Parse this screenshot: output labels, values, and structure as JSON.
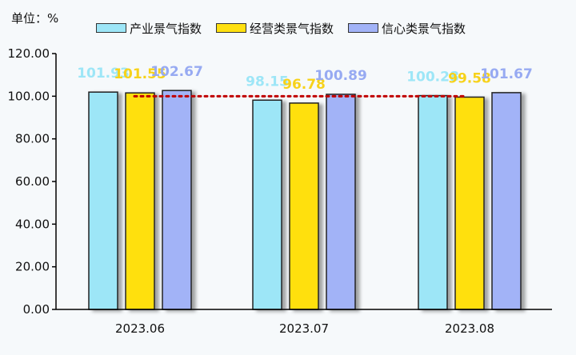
{
  "unit_label": "单位：%",
  "chart_data": {
    "type": "bar",
    "categories": [
      "2023.06",
      "2023.07",
      "2023.08"
    ],
    "series": [
      {
        "name": "产业景气指数",
        "values": [
          101.93,
          98.15,
          100.28
        ],
        "color": "#9de6f7",
        "label_color": "#9de6f7"
      },
      {
        "name": "经营类景气指数",
        "values": [
          101.55,
          96.78,
          99.58
        ],
        "color": "#ffe010",
        "label_color": "#f7d21a"
      },
      {
        "name": "信心类景气指数",
        "values": [
          102.67,
          100.89,
          101.67
        ],
        "color": "#a2b3f7",
        "label_color": "#97aaf2"
      }
    ],
    "yticks": [
      "0.00",
      "20.00",
      "40.00",
      "60.00",
      "80.00",
      "100.00",
      "120.00"
    ],
    "ylim": [
      0,
      120
    ],
    "reference_line": {
      "value": 100,
      "color": "#c00000",
      "style": "dotted"
    },
    "legend_position": "top",
    "grid": false
  }
}
